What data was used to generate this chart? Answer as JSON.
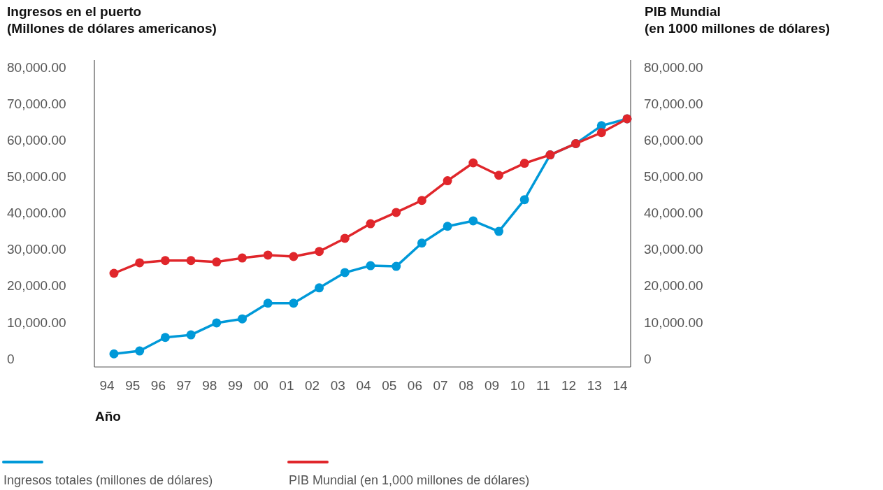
{
  "chart_data": {
    "type": "line",
    "ylabel": "Ingresos en el puerto\n(Millones de dólares americanos)",
    "y2label": "PIB Mundial\n(en 1000 millones de dólares)",
    "xlabel": "Año",
    "categories": [
      "94",
      "95",
      "96",
      "97",
      "98",
      "99",
      "00",
      "01",
      "02",
      "03",
      "04",
      "05",
      "06",
      "07",
      "08",
      "09",
      "10",
      "11",
      "12",
      "13",
      "14"
    ],
    "series": [
      {
        "name": "Ingresos totales (millones de dólares)",
        "color": "#0099d8",
        "values": [
          1300,
          2100,
          5800,
          6500,
          9800,
          10900,
          15200,
          15200,
          19400,
          23600,
          25500,
          25300,
          31700,
          36300,
          37800,
          34900,
          43600,
          55900,
          59000,
          63900,
          65800
        ]
      },
      {
        "name": "PIB Mundial (en 1,000 millones de dólares)",
        "color": "#e0262b",
        "values": [
          23400,
          26300,
          26900,
          26900,
          26500,
          27600,
          28400,
          28000,
          29400,
          33000,
          37000,
          40100,
          43400,
          48800,
          53700,
          50300,
          53600,
          55900,
          59000,
          62000,
          65800
        ]
      }
    ],
    "ylim": [
      -2300,
      81900
    ],
    "yticks": [
      0,
      {
        "value": 10000,
        "label": "10,000.00"
      },
      {
        "value": 20000,
        "label": "20,000.00"
      },
      {
        "value": 30000,
        "label": "30,000.00"
      },
      {
        "value": 40000,
        "label": "40,000.00"
      },
      {
        "value": 50000,
        "label": "50,000.00"
      },
      {
        "value": 60000,
        "label": "60,000.00"
      },
      {
        "value": 70000,
        "label": "70,000.00"
      },
      {
        "value": 80000,
        "label": "80,000.00"
      }
    ],
    "y2lim": [
      -2300,
      81900
    ],
    "y2ticks": [
      0,
      {
        "value": 10000,
        "label": "10,000.00"
      },
      {
        "value": 20000,
        "label": "20,000.00"
      },
      {
        "value": 30000,
        "label": "30,000.00"
      },
      {
        "value": 40000,
        "label": "40,000.00"
      },
      {
        "value": 50000,
        "label": "50,000.00"
      },
      {
        "value": 60000,
        "label": "60,000.00"
      },
      {
        "value": 70000,
        "label": "70,000.00"
      },
      {
        "value": 80000,
        "label": "80,000.00"
      }
    ],
    "marker": "circle",
    "legend": "bottom",
    "grid": false
  }
}
